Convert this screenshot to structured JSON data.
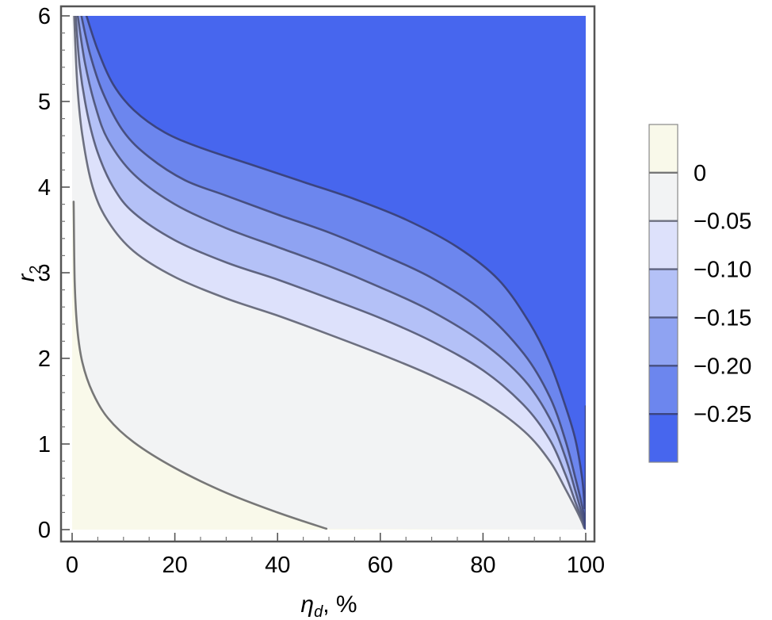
{
  "chart_data": {
    "type": "contour",
    "xlabel": {
      "main": "η",
      "sub": "d",
      "suffix": ", %"
    },
    "ylabel": {
      "main": "r",
      "sub": "2"
    },
    "xlim": [
      0,
      100
    ],
    "ylim": [
      0,
      6
    ],
    "x_ticks": [
      "0",
      "20",
      "40",
      "60",
      "80",
      "100"
    ],
    "y_ticks": [
      "0",
      "1",
      "2",
      "3",
      "4",
      "5",
      "6"
    ],
    "grid": false,
    "legend_placement": "right",
    "legend": {
      "labels": [
        "0",
        "−0.05",
        "−0.10",
        "−0.15",
        "−0.20",
        "−0.25"
      ],
      "colors": [
        "#f9f9ea",
        "#f2f3f4",
        "#dde1fb",
        "#b4c1f7",
        "#8fa3f2",
        "#6c86ee",
        "#4766ee"
      ]
    },
    "region_colors": [
      "#f9f9ea",
      "#f2f3f4",
      "#dde1fb",
      "#b4c1f7",
      "#8fa3f2",
      "#6c86ee",
      "#4766ee"
    ],
    "contour_line_colors": [
      "#777777",
      "#6d7080",
      "#5f6480",
      "#535a80",
      "#474f80",
      "#3b4480"
    ],
    "contours": [
      {
        "level": 0,
        "points": [
          [
            0.3,
            3.83
          ],
          [
            0.5,
            2.9
          ],
          [
            1,
            2.35
          ],
          [
            2,
            1.95
          ],
          [
            4,
            1.6
          ],
          [
            7,
            1.3
          ],
          [
            12,
            1.02
          ],
          [
            20,
            0.72
          ],
          [
            30,
            0.43
          ],
          [
            40,
            0.2
          ],
          [
            49.5,
            0.01
          ]
        ]
      },
      {
        "level": -0.05,
        "points": [
          [
            0.4,
            6
          ],
          [
            1,
            5.2
          ],
          [
            2,
            4.6
          ],
          [
            4,
            4.0
          ],
          [
            7,
            3.6
          ],
          [
            12,
            3.25
          ],
          [
            20,
            2.95
          ],
          [
            30,
            2.7
          ],
          [
            40,
            2.5
          ],
          [
            50,
            2.28
          ],
          [
            60,
            2.05
          ],
          [
            70,
            1.8
          ],
          [
            80,
            1.5
          ],
          [
            88,
            1.15
          ],
          [
            93,
            0.8
          ],
          [
            96,
            0.48
          ],
          [
            98,
            0.25
          ],
          [
            99.2,
            0.1
          ],
          [
            99.7,
            0.02
          ]
        ]
      },
      {
        "level": -0.1,
        "points": [
          [
            0.7,
            6
          ],
          [
            1.5,
            5.4
          ],
          [
            3,
            4.85
          ],
          [
            5,
            4.4
          ],
          [
            8,
            4.0
          ],
          [
            12,
            3.7
          ],
          [
            20,
            3.38
          ],
          [
            30,
            3.12
          ],
          [
            40,
            2.92
          ],
          [
            50,
            2.7
          ],
          [
            60,
            2.47
          ],
          [
            70,
            2.2
          ],
          [
            80,
            1.86
          ],
          [
            88,
            1.45
          ],
          [
            93,
            1.05
          ],
          [
            96,
            0.65
          ],
          [
            98,
            0.32
          ],
          [
            99.3,
            0.12
          ],
          [
            99.8,
            0.02
          ]
        ]
      },
      {
        "level": -0.15,
        "points": [
          [
            1.1,
            6
          ],
          [
            2.5,
            5.45
          ],
          [
            4.5,
            4.95
          ],
          [
            7,
            4.55
          ],
          [
            12,
            4.15
          ],
          [
            20,
            3.8
          ],
          [
            30,
            3.52
          ],
          [
            40,
            3.3
          ],
          [
            50,
            3.08
          ],
          [
            60,
            2.83
          ],
          [
            70,
            2.55
          ],
          [
            80,
            2.18
          ],
          [
            88,
            1.75
          ],
          [
            93,
            1.3
          ],
          [
            96,
            0.85
          ],
          [
            98,
            0.45
          ],
          [
            99.4,
            0.15
          ],
          [
            99.85,
            0.02
          ]
        ]
      },
      {
        "level": -0.2,
        "points": [
          [
            1.8,
            6
          ],
          [
            3.5,
            5.55
          ],
          [
            6,
            5.1
          ],
          [
            10,
            4.65
          ],
          [
            15,
            4.35
          ],
          [
            22,
            4.08
          ],
          [
            30,
            3.9
          ],
          [
            40,
            3.68
          ],
          [
            50,
            3.47
          ],
          [
            60,
            3.22
          ],
          [
            70,
            2.94
          ],
          [
            80,
            2.55
          ],
          [
            88,
            2.05
          ],
          [
            93,
            1.55
          ],
          [
            96,
            1.05
          ],
          [
            98,
            0.6
          ],
          [
            99.4,
            0.25
          ],
          [
            99.85,
            0.05
          ]
        ]
      },
      {
        "level": -0.25,
        "points": [
          [
            2.8,
            6
          ],
          [
            5,
            5.6
          ],
          [
            8,
            5.2
          ],
          [
            12,
            4.9
          ],
          [
            18,
            4.64
          ],
          [
            25,
            4.46
          ],
          [
            35,
            4.26
          ],
          [
            45,
            4.06
          ],
          [
            55,
            3.86
          ],
          [
            65,
            3.62
          ],
          [
            75,
            3.3
          ],
          [
            83,
            2.92
          ],
          [
            89,
            2.42
          ],
          [
            93,
            1.95
          ],
          [
            96,
            1.45
          ],
          [
            98,
            1.05
          ],
          [
            99.3,
            0.6
          ],
          [
            99.8,
            0.25
          ]
        ]
      }
    ],
    "lower_plateau_edge": [
      [
        99.95,
        0.0
      ],
      [
        100,
        1.45
      ]
    ]
  }
}
